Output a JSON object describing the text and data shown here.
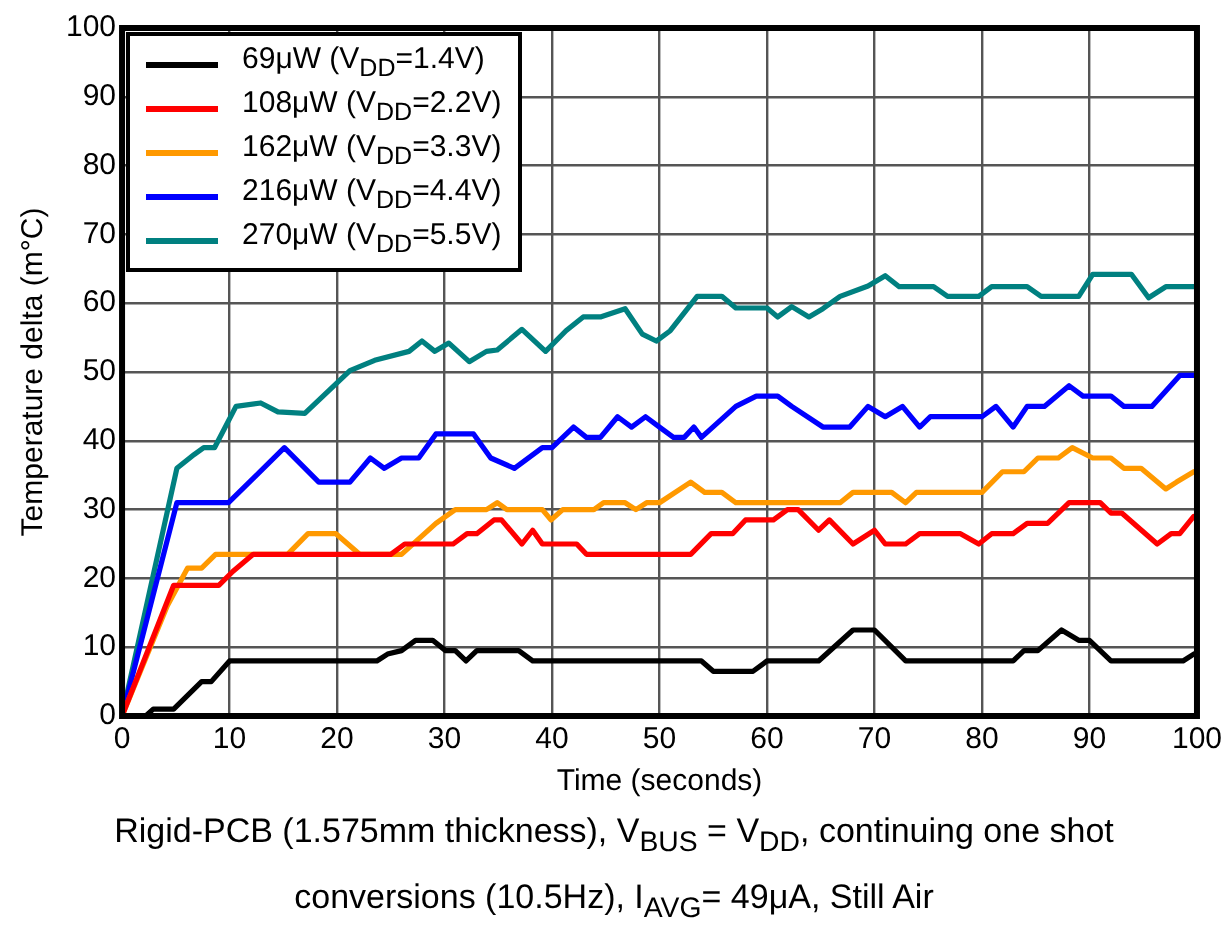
{
  "chart_data": {
    "type": "line",
    "xlabel": "Time (seconds)",
    "ylabel": "Temperature delta (m°C)",
    "xlim": [
      0,
      100
    ],
    "xticks": [
      0,
      10,
      20,
      30,
      40,
      50,
      60,
      70,
      80,
      90,
      100
    ],
    "ylim": [
      0,
      100
    ],
    "yticks": [
      0,
      10,
      20,
      30,
      40,
      50,
      60,
      70,
      80,
      90,
      100
    ],
    "grid": true,
    "legend": "top left",
    "marker": "none",
    "line_style": "solid",
    "annotations": [
      "Rigid-PCB (1.575mm thickness), V$_{BUS}$ = V$_{DD}$, continuing one shot conversions (10.5Hz), I$_{AVG}$= 49μA, Still Air"
    ],
    "series": [
      {
        "name": "69μW (V$_{DD}$=1.4V)",
        "color": "#000000",
        "x": [
          0,
          2.2,
          2.9,
          4.8,
          7.4,
          8.3,
          10,
          23.7,
          24.7,
          26,
          27.3,
          28.9,
          30.1,
          31,
          32,
          33,
          36.9,
          38.2,
          53.9,
          55,
          58.7,
          60,
          64.8,
          68,
          70,
          72.9,
          82.9,
          83.9,
          85.2,
          87.4,
          89,
          90,
          92,
          98.7,
          99.7
        ],
        "values": [
          0,
          0,
          1,
          1,
          5,
          5,
          8,
          8,
          9,
          9.5,
          11,
          11,
          9.5,
          9.5,
          8,
          9.5,
          9.5,
          8,
          8,
          6.5,
          6.5,
          8,
          8,
          12.5,
          12.5,
          8,
          8,
          9.5,
          9.5,
          12.5,
          11,
          11,
          8,
          8,
          9
        ]
      },
      {
        "name": "108μW (V$_{DD}$=2.2V)",
        "color": "#ff0000",
        "x": [
          0,
          4.8,
          9,
          10.3,
          12.2,
          25,
          26.3,
          30.8,
          32.1,
          33,
          34.6,
          35.3,
          37.2,
          38.2,
          39.1,
          42.3,
          43.2,
          52.9,
          54.8,
          56.8,
          58,
          60.6,
          61.9,
          62.9,
          64.8,
          65.8,
          68,
          70,
          71,
          72.9,
          74.2,
          78,
          79.7,
          80.9,
          82.9,
          84.2,
          86.1,
          88.1,
          91,
          92,
          93,
          96.3,
          97.6,
          98.4,
          99.7
        ],
        "values": [
          0,
          19,
          19,
          21,
          23.5,
          23.5,
          25,
          25,
          26.5,
          26.5,
          28.5,
          28.5,
          25,
          27,
          25,
          25,
          23.5,
          23.5,
          26.5,
          26.5,
          28.5,
          28.5,
          30,
          30,
          27,
          28.5,
          25,
          27,
          25,
          25,
          26.5,
          26.5,
          25,
          26.5,
          26.5,
          28,
          28,
          31,
          31,
          29.5,
          29.5,
          25,
          26.5,
          26.5,
          29
        ]
      },
      {
        "name": "162μW (V$_{DD}$=3.3V)",
        "color": "#ff9900",
        "x": [
          0,
          4.2,
          6.1,
          7.4,
          8.7,
          15.4,
          17.3,
          19.9,
          22.1,
          26,
          29.2,
          31,
          33.9,
          34.9,
          35.8,
          39.1,
          39.9,
          41,
          43.9,
          44.8,
          46.8,
          47.8,
          48.8,
          50,
          52.9,
          54.2,
          55.8,
          57.1,
          66.8,
          68,
          71.6,
          72.9,
          73.9,
          80,
          81.9,
          83.9,
          85.2,
          87.1,
          88.4,
          90.3,
          92,
          93.2,
          94.8,
          97.1,
          98.1,
          99.7
        ],
        "values": [
          0,
          16,
          21.5,
          21.5,
          23.5,
          23.5,
          26.5,
          26.5,
          23.5,
          23.5,
          28,
          30,
          30,
          31,
          30,
          30,
          28.5,
          30,
          30,
          31,
          31,
          30,
          31,
          31,
          34,
          32.5,
          32.5,
          31,
          31,
          32.5,
          32.5,
          31,
          32.5,
          32.5,
          35.5,
          35.5,
          37.5,
          37.5,
          39,
          37.5,
          37.5,
          36,
          36,
          33,
          34,
          35.5
        ]
      },
      {
        "name": "216μW (V$_{DD}$=4.4V)",
        "color": "#0000ff",
        "x": [
          0,
          5.1,
          9.9,
          15.1,
          18.3,
          21.2,
          23.1,
          24.4,
          26,
          27.6,
          29.2,
          32.7,
          34.3,
          36.5,
          39.1,
          40,
          42,
          43.2,
          44.5,
          46.1,
          47.4,
          48.7,
          50,
          51.3,
          52.3,
          53.2,
          53.9,
          57.1,
          59,
          61,
          62.3,
          65.2,
          67.7,
          69.4,
          71,
          72.6,
          74.2,
          75.2,
          80,
          81.3,
          82.9,
          84.2,
          85.8,
          88.1,
          89.4,
          92,
          93.2,
          95.8,
          98.4,
          99.7
        ],
        "values": [
          0,
          31,
          31,
          39,
          34,
          34,
          37.5,
          36,
          37.5,
          37.5,
          41,
          41,
          37.5,
          36,
          39,
          39,
          42,
          40.5,
          40.5,
          43.5,
          42,
          43.5,
          42,
          40.5,
          40.5,
          42,
          40.5,
          45,
          46.5,
          46.5,
          45,
          42,
          42,
          45,
          43.5,
          45,
          42,
          43.5,
          43.5,
          45,
          42,
          45,
          45,
          48,
          46.5,
          46.5,
          45,
          45,
          49.5,
          49.5
        ]
      },
      {
        "name": "270μW (V$_{DD}$=5.5V)",
        "color": "#008080",
        "x": [
          0,
          5.1,
          6.7,
          7.6,
          8.6,
          10.6,
          12.9,
          14.5,
          17,
          21.2,
          23.5,
          26.7,
          27.9,
          29.1,
          30.4,
          32.3,
          33.9,
          34.9,
          37.2,
          39.4,
          41.3,
          42.9,
          44.5,
          46.8,
          48.4,
          49.7,
          51,
          53.5,
          55.8,
          57.1,
          60,
          61,
          62.3,
          63.9,
          65.2,
          66.8,
          69.4,
          71,
          72.3,
          75.5,
          76.8,
          79.7,
          80.9,
          84.2,
          85.5,
          89,
          90.3,
          93.9,
          95.5,
          97.1,
          99.7
        ],
        "values": [
          0,
          36,
          38,
          39,
          39,
          45,
          45.5,
          44.2,
          44,
          50.2,
          51.7,
          53,
          54.5,
          53,
          54.2,
          51.5,
          53,
          53.2,
          56.2,
          53,
          56,
          58,
          58,
          59.2,
          55.5,
          54.5,
          56,
          61,
          61,
          59.3,
          59.3,
          58,
          59.5,
          58,
          59.2,
          61,
          62.5,
          64,
          62.4,
          62.4,
          61,
          61,
          62.4,
          62.4,
          61,
          61,
          64.2,
          64.2,
          60.8,
          62.4,
          62.4
        ]
      }
    ]
  }
}
